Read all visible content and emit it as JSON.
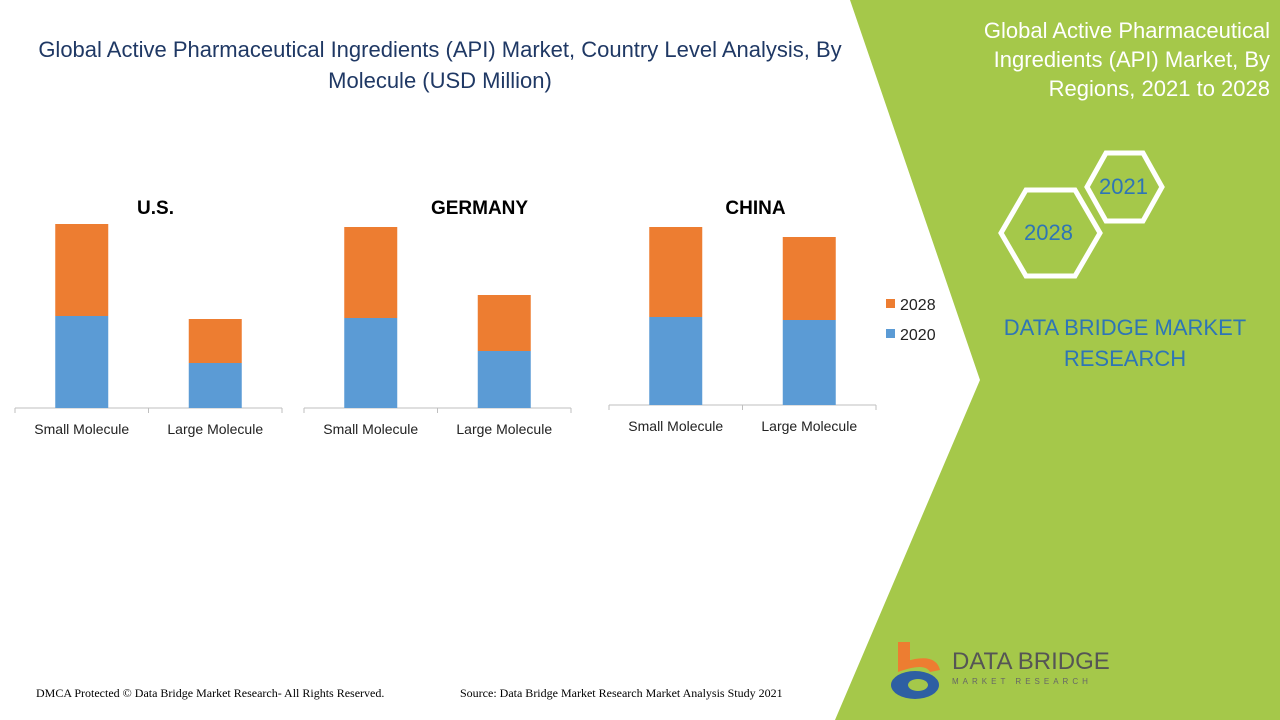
{
  "title": "Global Active Pharmaceutical Ingredients (API) Market, Country Level Analysis, By Molecule (USD Million)",
  "side_panel": {
    "title": "Global Active Pharmaceutical Ingredients (API) Market, By Regions, 2021 to 2028",
    "hex_years": [
      "2021",
      "2028"
    ],
    "brand": "DATA BRIDGE MARKET RESEARCH"
  },
  "footer": {
    "dmca": "DMCA Protected © Data Bridge Market Research- All Rights Reserved.",
    "source": "Source: Data Bridge Market Research Market Analysis Study 2021"
  },
  "logo": {
    "name": "DATA BRIDGE",
    "tagline": "MARKET RESEARCH"
  },
  "colors": {
    "2020": "#5b9bd5",
    "2028": "#ed7d31",
    "panel": "#a5c84a",
    "title": "#1f3864"
  },
  "chart_data": [
    {
      "type": "bar",
      "stacked": true,
      "title": "U.S.",
      "categories": [
        "Small Molecule",
        "Large Molecule"
      ],
      "series": [
        {
          "name": "2020",
          "values": [
            92,
            45
          ]
        },
        {
          "name": "2028",
          "values": [
            92,
            44
          ]
        }
      ],
      "legend": "right"
    },
    {
      "type": "bar",
      "stacked": true,
      "title": "GERMANY",
      "categories": [
        "Small Molecule",
        "Large Molecule"
      ],
      "series": [
        {
          "name": "2020",
          "values": [
            90,
            57
          ]
        },
        {
          "name": "2028",
          "values": [
            91,
            56
          ]
        }
      ],
      "legend": "right"
    },
    {
      "type": "bar",
      "stacked": true,
      "title": "CHINA",
      "categories": [
        "Small Molecule",
        "Large Molecule"
      ],
      "series": [
        {
          "name": "2020",
          "values": [
            88,
            85
          ]
        },
        {
          "name": "2028",
          "values": [
            90,
            83
          ]
        }
      ],
      "legend": "right"
    }
  ]
}
